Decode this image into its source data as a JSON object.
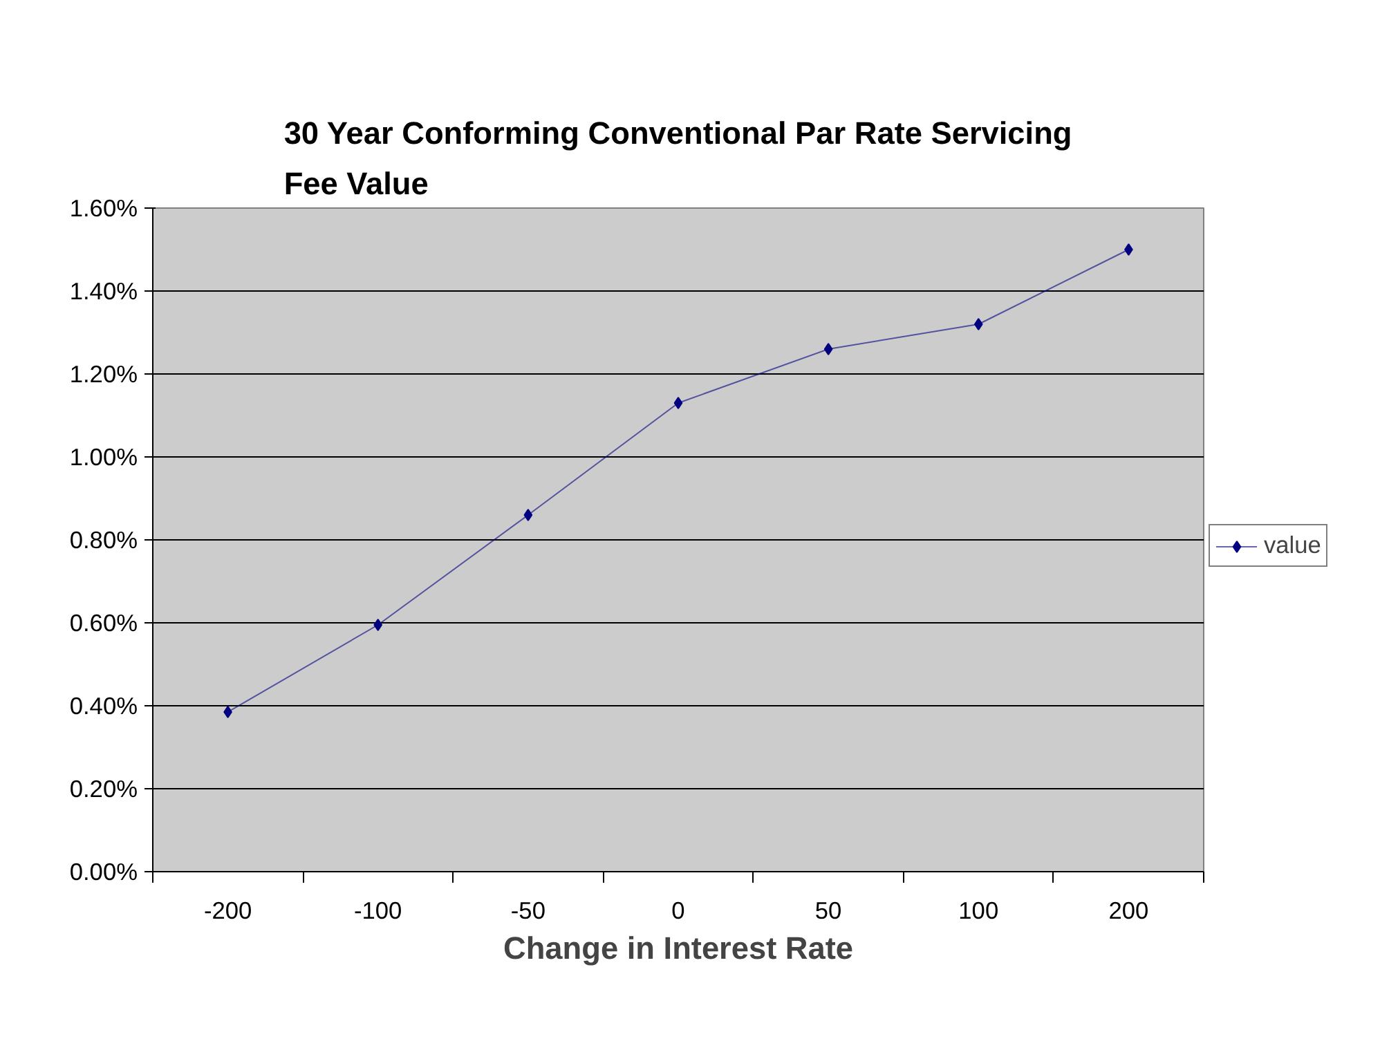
{
  "chart_data": {
    "type": "line",
    "title": "30 Year Conforming Conventional Par Rate Servicing\nFee Value",
    "xlabel": "Change in Interest Rate",
    "categories": [
      "-200",
      "-100",
      "-50",
      "0",
      "50",
      "100",
      "200"
    ],
    "series": [
      {
        "name": "value",
        "color": "#000080",
        "values": [
          0.385,
          0.595,
          0.86,
          1.13,
          1.26,
          1.32,
          1.5
        ]
      }
    ],
    "ylim": [
      0,
      1.6
    ],
    "yticks": [
      {
        "value": 0,
        "label": "0.00%"
      },
      {
        "value": 0.2,
        "label": "0.20%"
      },
      {
        "value": 0.4,
        "label": "0.40%"
      },
      {
        "value": 0.6,
        "label": "0.60%"
      },
      {
        "value": 0.8,
        "label": "0.80%"
      },
      {
        "value": 1.0,
        "label": "1.00%"
      },
      {
        "value": 1.2,
        "label": "1.20%"
      },
      {
        "value": 1.4,
        "label": "1.40%"
      },
      {
        "value": 1.6,
        "label": "1.60%"
      }
    ],
    "grid": "y",
    "legend": "right",
    "marker": "diamond",
    "line_style": "solid"
  }
}
